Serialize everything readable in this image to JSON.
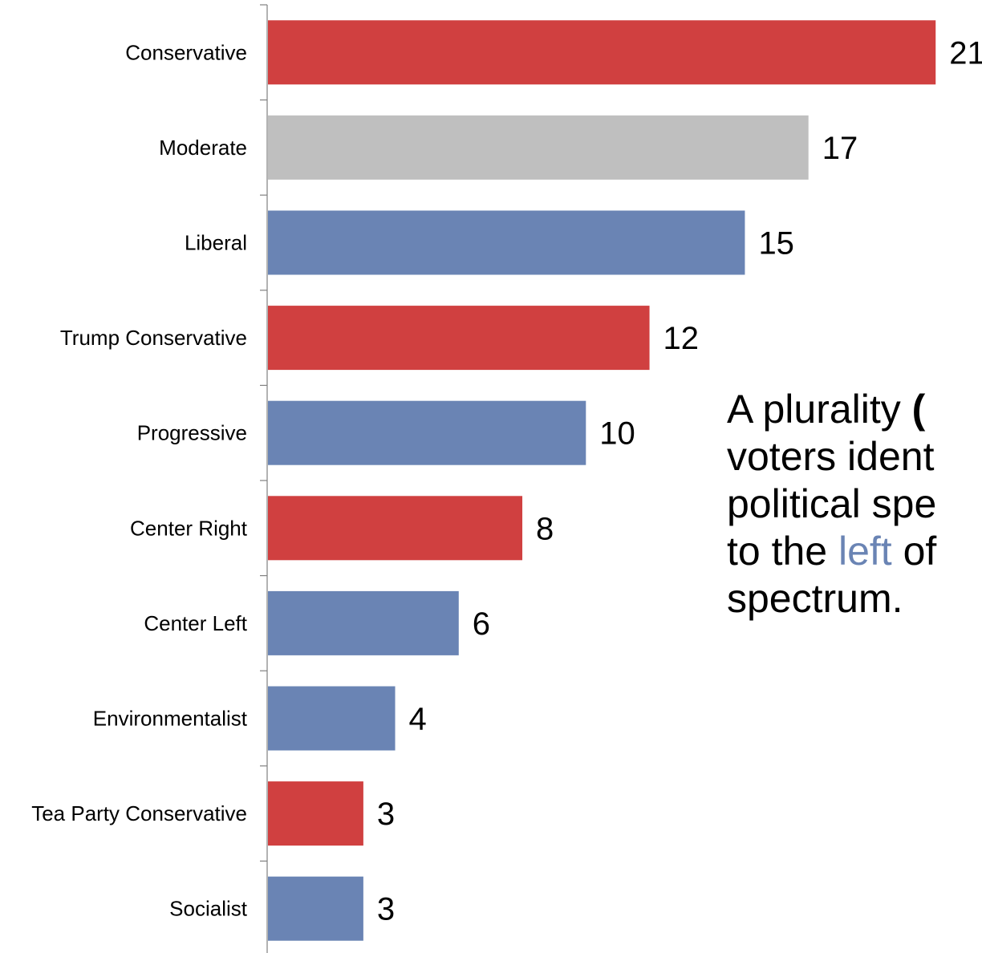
{
  "chart_data": {
    "type": "bar",
    "orientation": "horizontal",
    "title": "",
    "xlabel": "",
    "ylabel": "",
    "categories": [
      "Conservative",
      "Moderate",
      "Liberal",
      "Trump Conservative",
      "Progressive",
      "Center Right",
      "Center Left",
      "Environmentalist",
      "Tea Party Conservative",
      "Socialist"
    ],
    "values": [
      21,
      17,
      15,
      12,
      10,
      8,
      6,
      4,
      3,
      3
    ],
    "value_labels": [
      "21",
      "17",
      "15",
      "12",
      "10",
      "8",
      "6",
      "4",
      "3",
      "3"
    ],
    "bar_colors": [
      "#d04040",
      "#bfbfbf",
      "#6a84b4",
      "#d04040",
      "#6a84b4",
      "#d04040",
      "#6a84b4",
      "#6a84b4",
      "#d04040",
      "#6a84b4"
    ],
    "xlim": [
      0,
      21
    ],
    "grid": false,
    "legend": "none"
  },
  "annotation": {
    "line1_a": "A plurality ",
    "line1_b": "(",
    "line2": "voters ident",
    "line3": "political spe",
    "line4_a": "to the ",
    "line4_b": "left",
    "line4_c": " of",
    "line5": "spectrum."
  },
  "colors": {
    "right": "#d04040",
    "moderate": "#bfbfbf",
    "left": "#6a84b4",
    "axis": "#808080",
    "text": "#000000"
  }
}
